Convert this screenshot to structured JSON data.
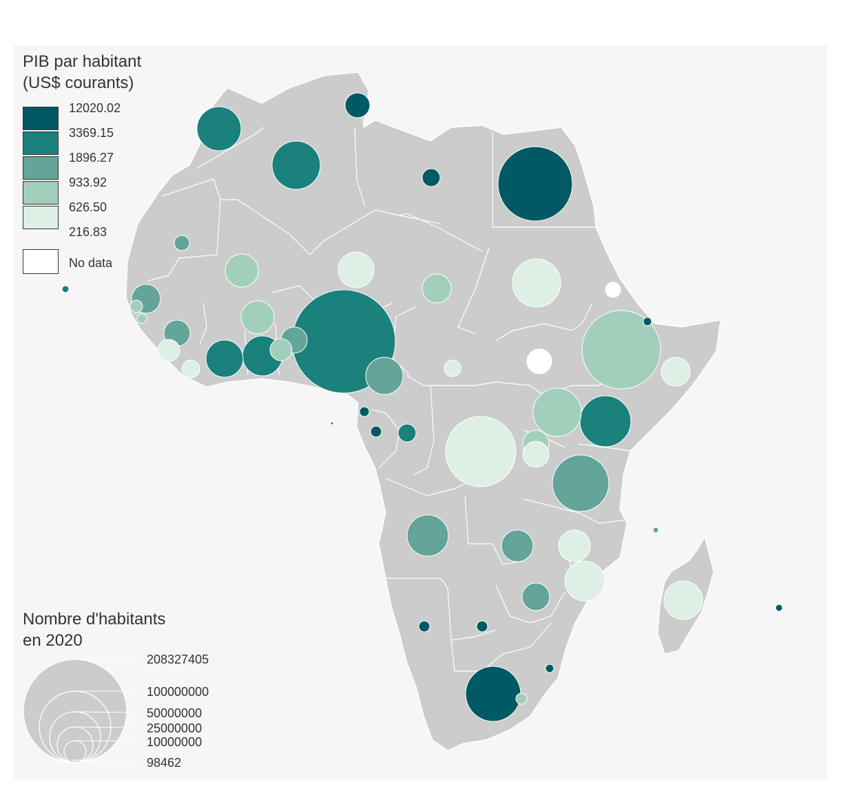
{
  "legend_color": {
    "title": "PIB par habitant\n(US$ courants)",
    "breaks": [
      "12020.02",
      "3369.15",
      "1896.27",
      "933.92",
      "626.50",
      "216.83"
    ],
    "colors": [
      "#015965",
      "#1a817c",
      "#63a598",
      "#a2cfbb",
      "#def0e5"
    ],
    "nodata_label": "No data",
    "nodata_color": "#ffffff"
  },
  "legend_size": {
    "title": "Nombre d'habitants\nen 2020",
    "values": [
      "208327405",
      "100000000",
      "50000000",
      "25000000",
      "10000000",
      "98462"
    ]
  },
  "colors": {
    "land": "#cccccc",
    "border": "#ffffff",
    "panel": "#f6f6f6",
    "text": "#333333"
  },
  "bubbles": [
    {
      "id": "maroc",
      "cls": 2
    },
    {
      "id": "algerie",
      "cls": 2
    },
    {
      "id": "tunisie",
      "cls": 1
    },
    {
      "id": "libye",
      "cls": 1
    },
    {
      "id": "egypte",
      "cls": 1
    },
    {
      "id": "mauritanie",
      "cls": 3
    },
    {
      "id": "mali",
      "cls": 4
    },
    {
      "id": "niger",
      "cls": 5
    },
    {
      "id": "tchad",
      "cls": 4
    },
    {
      "id": "soudan",
      "cls": 5
    },
    {
      "id": "erythree",
      "cls": 0
    },
    {
      "id": "djibouti",
      "cls": 1
    },
    {
      "id": "ethiopie",
      "cls": 4
    },
    {
      "id": "somalie",
      "cls": 5
    },
    {
      "id": "cap-vert",
      "cls": 2
    },
    {
      "id": "senegal",
      "cls": 3
    },
    {
      "id": "gambie",
      "cls": 4
    },
    {
      "id": "guinee-bissau",
      "cls": 4
    },
    {
      "id": "guinee",
      "cls": 3
    },
    {
      "id": "sierra-leone",
      "cls": 5
    },
    {
      "id": "liberia",
      "cls": 5
    },
    {
      "id": "burkina-faso",
      "cls": 4
    },
    {
      "id": "cote-d-ivoire",
      "cls": 2
    },
    {
      "id": "ghana",
      "cls": 2
    },
    {
      "id": "togo",
      "cls": 4
    },
    {
      "id": "benin",
      "cls": 3
    },
    {
      "id": "nigeria",
      "cls": 2
    },
    {
      "id": "cameroun",
      "cls": 3
    },
    {
      "id": "rca",
      "cls": 5
    },
    {
      "id": "soudan-du-sud",
      "cls": 0
    },
    {
      "id": "sao-tome",
      "cls": 2
    },
    {
      "id": "guinee-equatoriale",
      "cls": 1
    },
    {
      "id": "gabon",
      "cls": 1
    },
    {
      "id": "congo",
      "cls": 2
    },
    {
      "id": "rdc",
      "cls": 5
    },
    {
      "id": "ouganda",
      "cls": 4
    },
    {
      "id": "kenya",
      "cls": 2
    },
    {
      "id": "rwanda",
      "cls": 4
    },
    {
      "id": "burundi",
      "cls": 5
    },
    {
      "id": "tanzanie",
      "cls": 3
    },
    {
      "id": "angola",
      "cls": 3
    },
    {
      "id": "zambie",
      "cls": 3
    },
    {
      "id": "malawi",
      "cls": 5
    },
    {
      "id": "mozambique",
      "cls": 5
    },
    {
      "id": "zimbabwe",
      "cls": 3
    },
    {
      "id": "namibie",
      "cls": 1
    },
    {
      "id": "botswana",
      "cls": 1
    },
    {
      "id": "afrique-du-sud",
      "cls": 1
    },
    {
      "id": "eswatini",
      "cls": 1
    },
    {
      "id": "lesotho",
      "cls": 4
    },
    {
      "id": "madagascar",
      "cls": 5
    },
    {
      "id": "comores",
      "cls": 3
    },
    {
      "id": "maurice",
      "cls": 1
    },
    {
      "id": "seychelles",
      "cls": 1
    }
  ]
}
